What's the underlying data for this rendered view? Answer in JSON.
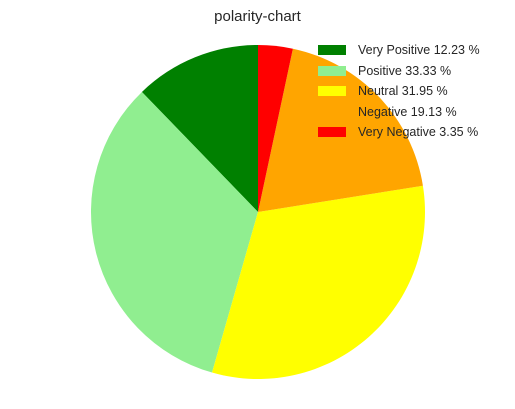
{
  "chart_data": {
    "type": "pie",
    "title": "polarity-chart",
    "start_angle_deg": 90,
    "direction": "counterclockwise",
    "legend_position": "top-right",
    "slices": [
      {
        "label": "Very Positive 12.23 %",
        "value": 12.23,
        "color": "#008000"
      },
      {
        "label": "Positive 33.33 %",
        "value": 33.33,
        "color": "#90ee90"
      },
      {
        "label": "Neutral 31.95 %",
        "value": 31.95,
        "color": "#ffff00"
      },
      {
        "label": "Negative 19.13 %",
        "value": 19.13,
        "color": "#ffa500"
      },
      {
        "label": "Very Negative 3.35 %",
        "value": 3.35,
        "color": "#ff0000"
      }
    ]
  }
}
